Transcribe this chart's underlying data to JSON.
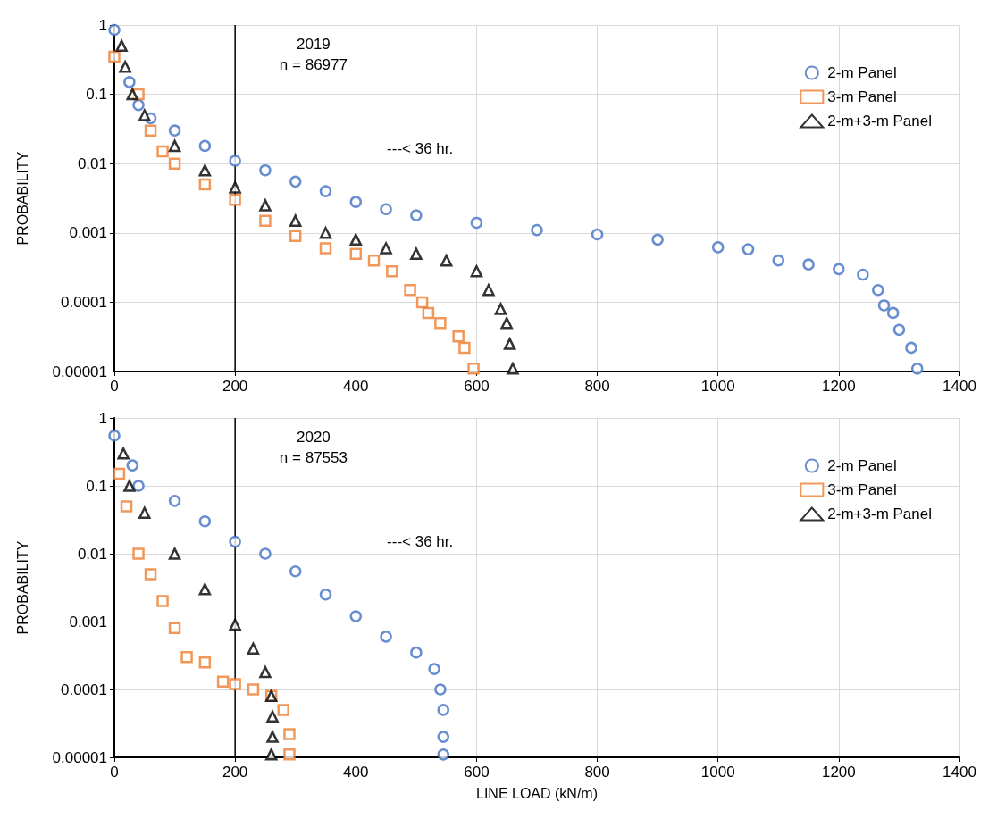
{
  "chart_data": [
    {
      "type": "scatter",
      "title": "2019",
      "subtitle": "n = 86977",
      "ylabel": "PROBABILITY",
      "log": "y",
      "grid": true,
      "legend": "top right",
      "tick_labels": "xy",
      "xlim": [
        0,
        1400
      ],
      "xticks": [
        0,
        200,
        400,
        600,
        800,
        1000,
        1200,
        1400
      ],
      "ylim": [
        1e-05,
        1
      ],
      "yticks": [
        {
          "value": 1e-05,
          "label": "0.00001"
        },
        0.0001,
        0.001,
        0.01,
        0.1,
        1
      ],
      "annotations": [
        "---< 36 hr."
      ],
      "ref_lines": [
        {
          "axis": "x",
          "value": 200,
          "color": "#000000"
        }
      ],
      "series": [
        {
          "name": "2-m Panel",
          "color": "#4472c4",
          "marker": "circle",
          "x": [
            0,
            25,
            40,
            60,
            100,
            150,
            200,
            250,
            300,
            350,
            400,
            450,
            500,
            600,
            700,
            800,
            900,
            1000,
            1050,
            1100,
            1150,
            1200,
            1240,
            1265,
            1275,
            1290,
            1300,
            1320,
            1330
          ],
          "values": [
            0.85,
            0.15,
            0.07,
            0.045,
            0.03,
            0.018,
            0.011,
            0.008,
            0.0055,
            0.004,
            0.0028,
            0.0022,
            0.0018,
            0.0014,
            0.0011,
            0.00095,
            0.0008,
            0.00062,
            0.00058,
            0.0004,
            0.00035,
            0.0003,
            0.00025,
            0.00015,
            9e-05,
            7e-05,
            4e-05,
            2.2e-05,
            1.1e-05
          ]
        },
        {
          "name": "3-m Panel",
          "color": "#ed7d31",
          "marker": "square",
          "x": [
            0,
            40,
            60,
            80,
            100,
            150,
            200,
            250,
            300,
            350,
            400,
            430,
            460,
            490,
            510,
            520,
            540,
            570,
            580,
            595
          ],
          "values": [
            0.35,
            0.1,
            0.03,
            0.015,
            0.01,
            0.005,
            0.003,
            0.0015,
            0.0009,
            0.0006,
            0.0005,
            0.0004,
            0.00028,
            0.00015,
            0.0001,
            7e-05,
            5e-05,
            3.2e-05,
            2.2e-05,
            1.1e-05
          ]
        },
        {
          "name": "2-m+3-m Panel",
          "color": "#000000",
          "marker": "triangle",
          "x": [
            12,
            18,
            30,
            50,
            100,
            150,
            200,
            250,
            300,
            350,
            400,
            450,
            500,
            550,
            600,
            620,
            640,
            650,
            655,
            660
          ],
          "values": [
            0.5,
            0.25,
            0.1,
            0.05,
            0.018,
            0.008,
            0.0045,
            0.0025,
            0.0015,
            0.001,
            0.0008,
            0.0006,
            0.0005,
            0.0004,
            0.00028,
            0.00015,
            8e-05,
            5e-05,
            2.5e-05,
            1.1e-05
          ]
        }
      ]
    },
    {
      "type": "scatter",
      "title": "2020",
      "subtitle": "n = 87553",
      "xlabel": "LINE LOAD (kN/m)",
      "ylabel": "PROBABILITY",
      "log": "y",
      "grid": true,
      "legend": "top right",
      "xlim": [
        0,
        1400
      ],
      "xticks": [
        0,
        200,
        400,
        600,
        800,
        1000,
        1200,
        1400
      ],
      "ylim": [
        1e-05,
        1
      ],
      "yticks": [
        {
          "value": 1e-05,
          "label": "0.00001"
        },
        0.0001,
        0.001,
        0.01,
        0.1,
        1
      ],
      "annotations": [
        "---< 36 hr."
      ],
      "ref_lines": [
        {
          "axis": "x",
          "value": 200,
          "color": "#000000"
        }
      ],
      "series": [
        {
          "name": "2-m Panel",
          "color": "#4472c4",
          "marker": "circle",
          "x": [
            0,
            30,
            40,
            100,
            150,
            200,
            250,
            300,
            350,
            400,
            450,
            500,
            530,
            540,
            545,
            545,
            545
          ],
          "values": [
            0.55,
            0.2,
            0.1,
            0.06,
            0.03,
            0.015,
            0.01,
            0.0055,
            0.0025,
            0.0012,
            0.0006,
            0.00035,
            0.0002,
            0.0001,
            5e-05,
            2e-05,
            1.1e-05
          ]
        },
        {
          "name": "3-m Panel",
          "color": "#ed7d31",
          "marker": "square",
          "x": [
            8,
            20,
            40,
            60,
            80,
            100,
            120,
            150,
            180,
            200,
            230,
            260,
            280,
            290,
            290
          ],
          "values": [
            0.15,
            0.05,
            0.01,
            0.005,
            0.002,
            0.0008,
            0.0003,
            0.00025,
            0.00013,
            0.00012,
            0.0001,
            8e-05,
            5e-05,
            2.2e-05,
            1.1e-05
          ]
        },
        {
          "name": "2-m+3-m Panel",
          "color": "#000000",
          "marker": "triangle",
          "x": [
            15,
            25,
            50,
            100,
            150,
            200,
            230,
            250,
            260,
            262,
            262,
            260
          ],
          "values": [
            0.3,
            0.1,
            0.04,
            0.01,
            0.003,
            0.0009,
            0.0004,
            0.00018,
            8e-05,
            4e-05,
            2e-05,
            1.1e-05
          ]
        }
      ]
    }
  ]
}
